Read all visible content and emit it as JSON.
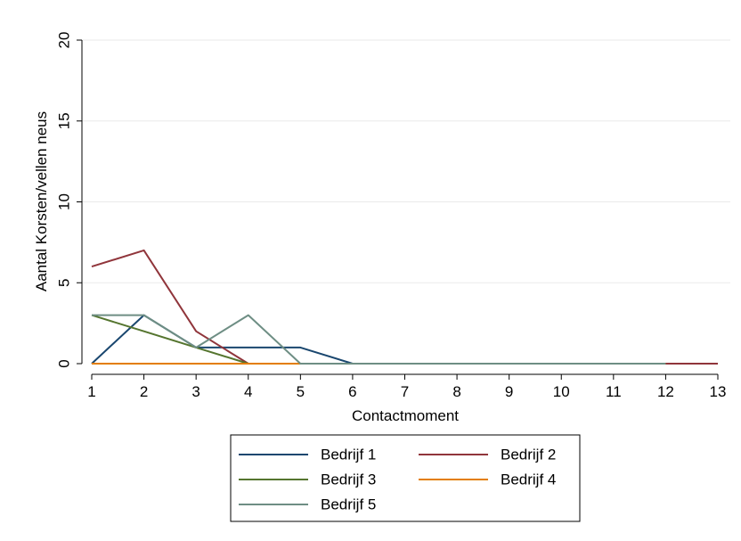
{
  "chart_data": {
    "type": "line",
    "xlabel": "Contactmoment",
    "ylabel": "Aantal Korsten/vellen neus",
    "x": [
      1,
      2,
      3,
      4,
      5,
      6,
      7,
      8,
      9,
      10,
      11,
      12,
      13
    ],
    "xlim": [
      1,
      13
    ],
    "ylim": [
      0,
      20
    ],
    "yticks": [
      0,
      5,
      10,
      15,
      20
    ],
    "xticks": [
      1,
      2,
      3,
      4,
      5,
      6,
      7,
      8,
      9,
      10,
      11,
      12,
      13
    ],
    "grid": true,
    "legend_position": "bottom",
    "series": [
      {
        "name": "Bedrijf 1",
        "color": "#1a476f",
        "x": [
          1,
          2,
          3,
          4,
          5,
          6,
          7,
          8,
          9,
          10,
          11,
          12
        ],
        "values": [
          0,
          3,
          1,
          1,
          1,
          0,
          0,
          0,
          0,
          0,
          0,
          0
        ]
      },
      {
        "name": "Bedrijf 2",
        "color": "#90353b",
        "x": [
          1,
          2,
          3,
          4,
          5,
          6,
          7,
          8,
          9,
          10,
          11,
          12,
          13
        ],
        "values": [
          6,
          7,
          2,
          0,
          0,
          0,
          0,
          0,
          0,
          0,
          0,
          0,
          0
        ]
      },
      {
        "name": "Bedrijf 3",
        "color": "#55752f",
        "x": [
          1,
          2,
          3,
          4,
          5,
          6,
          7,
          8,
          9,
          10,
          11,
          12
        ],
        "values": [
          3,
          2,
          1,
          0,
          0,
          0,
          0,
          0,
          0,
          0,
          0,
          0
        ]
      },
      {
        "name": "Bedrijf 4",
        "color": "#e37e00",
        "x": [
          1,
          2,
          3,
          4,
          5,
          6,
          7,
          8,
          9,
          10,
          11,
          12
        ],
        "values": [
          0,
          0,
          0,
          0,
          0,
          0,
          0,
          0,
          0,
          0,
          0,
          0
        ]
      },
      {
        "name": "Bedrijf 5",
        "color": "#6e8e84",
        "x": [
          1,
          2,
          3,
          4,
          5,
          6,
          7,
          8,
          9,
          10,
          11,
          12
        ],
        "values": [
          3,
          3,
          1,
          3,
          0,
          0,
          0,
          0,
          0,
          0,
          0,
          0
        ]
      }
    ]
  }
}
